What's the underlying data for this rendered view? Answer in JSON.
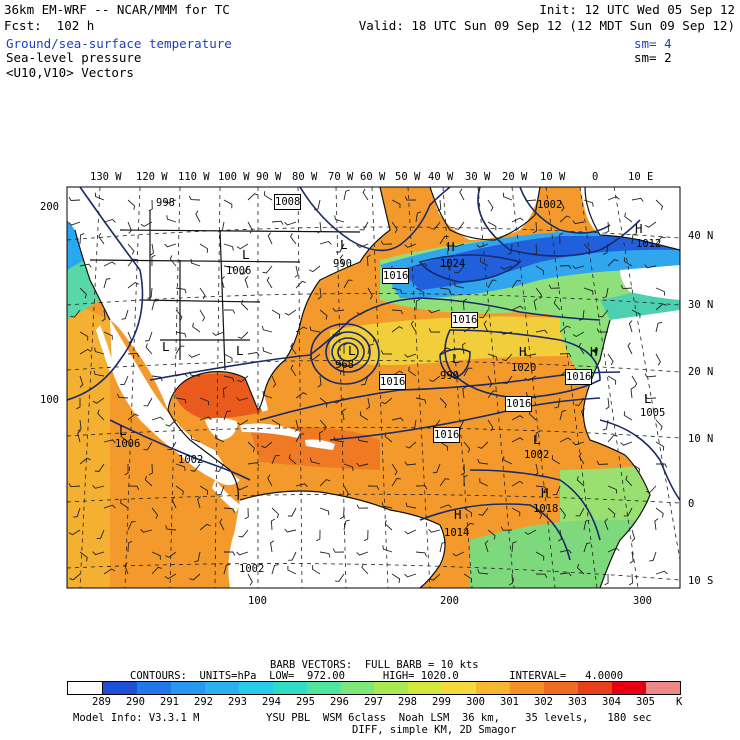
{
  "header": {
    "model_line": "36km EM-WRF -- NCAR/MMM for TC",
    "forecast": "Fcst:  102 h",
    "init": "Init: 12 UTC Wed 05 Sep 12",
    "valid": "Valid: 18 UTC Sun 09 Sep 12 (12 MDT Sun 09 Sep 12)",
    "field1": "Ground/sea-surface temperature",
    "field1_sm": "sm= 4",
    "field2": "Sea-level pressure",
    "field2_sm": "sm= 2",
    "field3": "<U10,V10> Vectors"
  },
  "colors": {
    "field1_text": "#1f3fbf",
    "land": "#ffffff",
    "contour": "#1a2a6a"
  },
  "lon_labels": [
    "130 W",
    "120 W",
    "110 W",
    "100 W",
    "90 W",
    "80 W",
    "70 W",
    "60 W",
    "50 W",
    "40 W",
    "30 W",
    "20 W",
    "10 W",
    "0",
    "10 E"
  ],
  "lat_labels": [
    "40 N",
    "30 N",
    "20 N",
    "10 N",
    "0",
    "10 S"
  ],
  "grid_left": [
    "200",
    "100"
  ],
  "grid_bottom": [
    "100",
    "200",
    "300"
  ],
  "pressure_labels": [
    "998",
    "1008",
    "1006",
    "990",
    "1016",
    "1024",
    "1012",
    "1016",
    "968",
    "1016",
    "990",
    "1020",
    "1016",
    "1016",
    "1016",
    "1005",
    "1006",
    "1002",
    "1002",
    "1018",
    "1014",
    "1002",
    "1002"
  ],
  "centers": [
    "L",
    "L",
    "L",
    "H",
    "L",
    "L",
    "L",
    "H",
    "H",
    "H",
    "L",
    "H",
    "L",
    "L",
    "H"
  ],
  "footer": {
    "barb_line": "BARB VECTORS:  FULL BARB = 10 kts",
    "contours_line": "CONTOURS:  UNITS=hPa  LOW=  972.00      HIGH= 1020.0        INTERVAL=   4.0000",
    "unit": "K",
    "legend_values": [
      "289",
      "290",
      "291",
      "292",
      "293",
      "294",
      "295",
      "296",
      "297",
      "298",
      "299",
      "300",
      "301",
      "302",
      "303",
      "304",
      "305"
    ],
    "legend_colors": [
      "#1e50d8",
      "#1f78ec",
      "#2a97f0",
      "#28b4f0",
      "#26cce8",
      "#2edcc8",
      "#50e6a0",
      "#7ce87a",
      "#a8e850",
      "#d6e83c",
      "#f4dc3a",
      "#f6b830",
      "#f69028",
      "#f06a20",
      "#e84018",
      "#e80010",
      "#f08888"
    ],
    "info1": "Model Info: V3.3.1 M",
    "info2": "YSU PBL  WSM 6class  Noah LSM  36 km,    35 levels,   180 sec",
    "info3": "DIFF, simple KM, 2D Smagor"
  }
}
